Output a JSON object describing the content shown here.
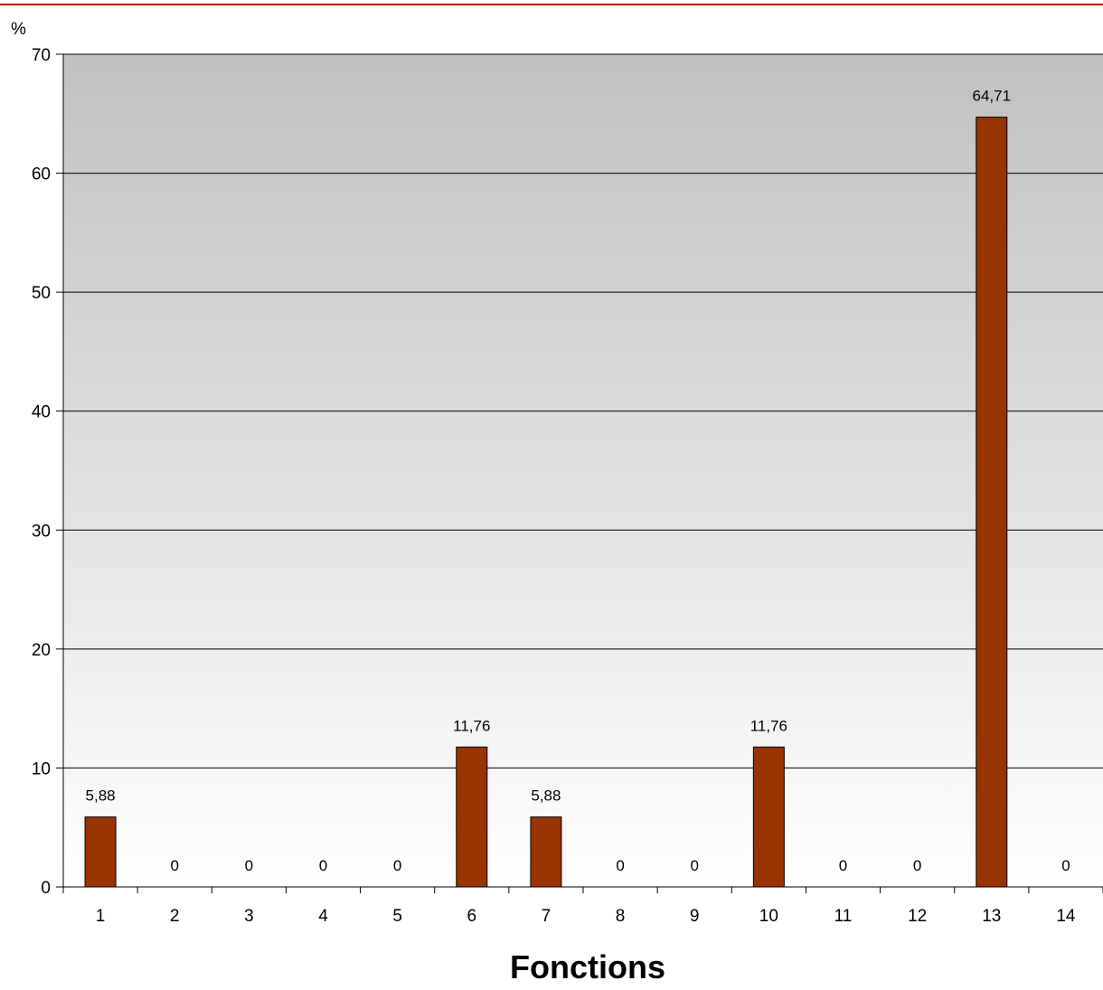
{
  "chart_data": {
    "type": "bar",
    "categories": [
      "1",
      "2",
      "3",
      "4",
      "5",
      "6",
      "7",
      "8",
      "9",
      "10",
      "11",
      "12",
      "13",
      "14"
    ],
    "values": [
      5.88,
      0,
      0,
      0,
      0,
      11.76,
      5.88,
      0,
      0,
      11.76,
      0,
      0,
      64.71,
      0
    ],
    "data_labels": [
      "5,88",
      "0",
      "0",
      "0",
      "0",
      "11,76",
      "5,88",
      "0",
      "0",
      "11,76",
      "0",
      "0",
      "64,71",
      "0"
    ],
    "xlabel": "Fonctions",
    "ylabel": "%",
    "ylim": [
      0,
      70
    ],
    "yticks": [
      0,
      10,
      20,
      30,
      40,
      50,
      60,
      70
    ],
    "grid": true,
    "legend": "none",
    "colors": {
      "bar": "#993300",
      "top_rule": "#c00000",
      "grid": "#000000",
      "background_top": "#c0c0c0",
      "background_bottom": "#ffffff"
    }
  }
}
